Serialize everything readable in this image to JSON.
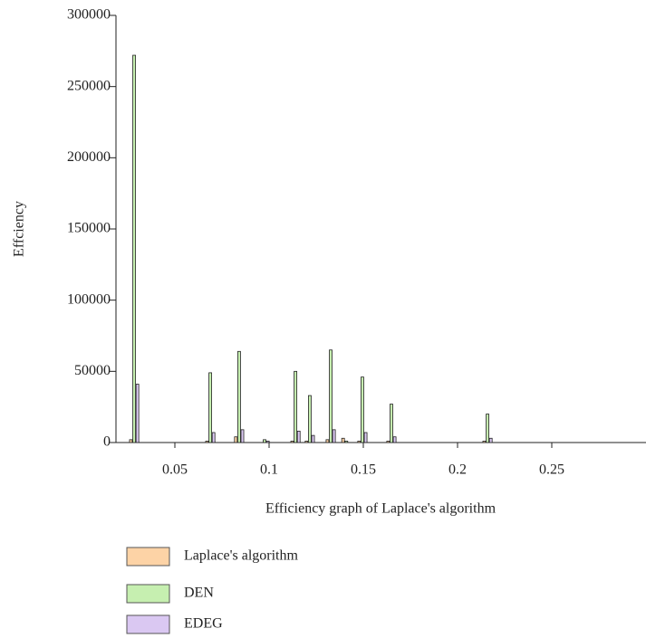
{
  "chart_data": {
    "type": "bar",
    "x_label": "Efficiency graph of Laplace's algorithm",
    "y_label": "Effciency",
    "x": [
      0.0284,
      0.0688,
      0.0841,
      0.0976,
      0.114,
      0.1216,
      0.1327,
      0.141,
      0.1495,
      0.1649,
      0.2159
    ],
    "series": [
      {
        "name": "Laplace's algorithm",
        "color": "#fdd3a6",
        "values": [
          2000,
          1000,
          4000,
          null,
          1000,
          1000,
          2000,
          3000,
          1000,
          1000,
          1000
        ]
      },
      {
        "name": "DEN",
        "color": "#c6efb0",
        "values": [
          272000,
          49000,
          64000,
          2000,
          50000,
          33000,
          65000,
          1000,
          46000,
          27000,
          20000
        ]
      },
      {
        "name": "EDEG",
        "color": "#dac8f2",
        "values": [
          41000,
          7000,
          9000,
          1000,
          8000,
          5000,
          9000,
          null,
          7000,
          4000,
          3000
        ]
      }
    ],
    "xlim": [
      0.01875,
      0.3
    ],
    "ylim": [
      0,
      300000
    ],
    "xticks": [
      0.05,
      0.1,
      0.15,
      0.2,
      0.25
    ],
    "yticks": [
      0,
      50000,
      100000,
      150000,
      200000,
      250000,
      300000
    ]
  }
}
